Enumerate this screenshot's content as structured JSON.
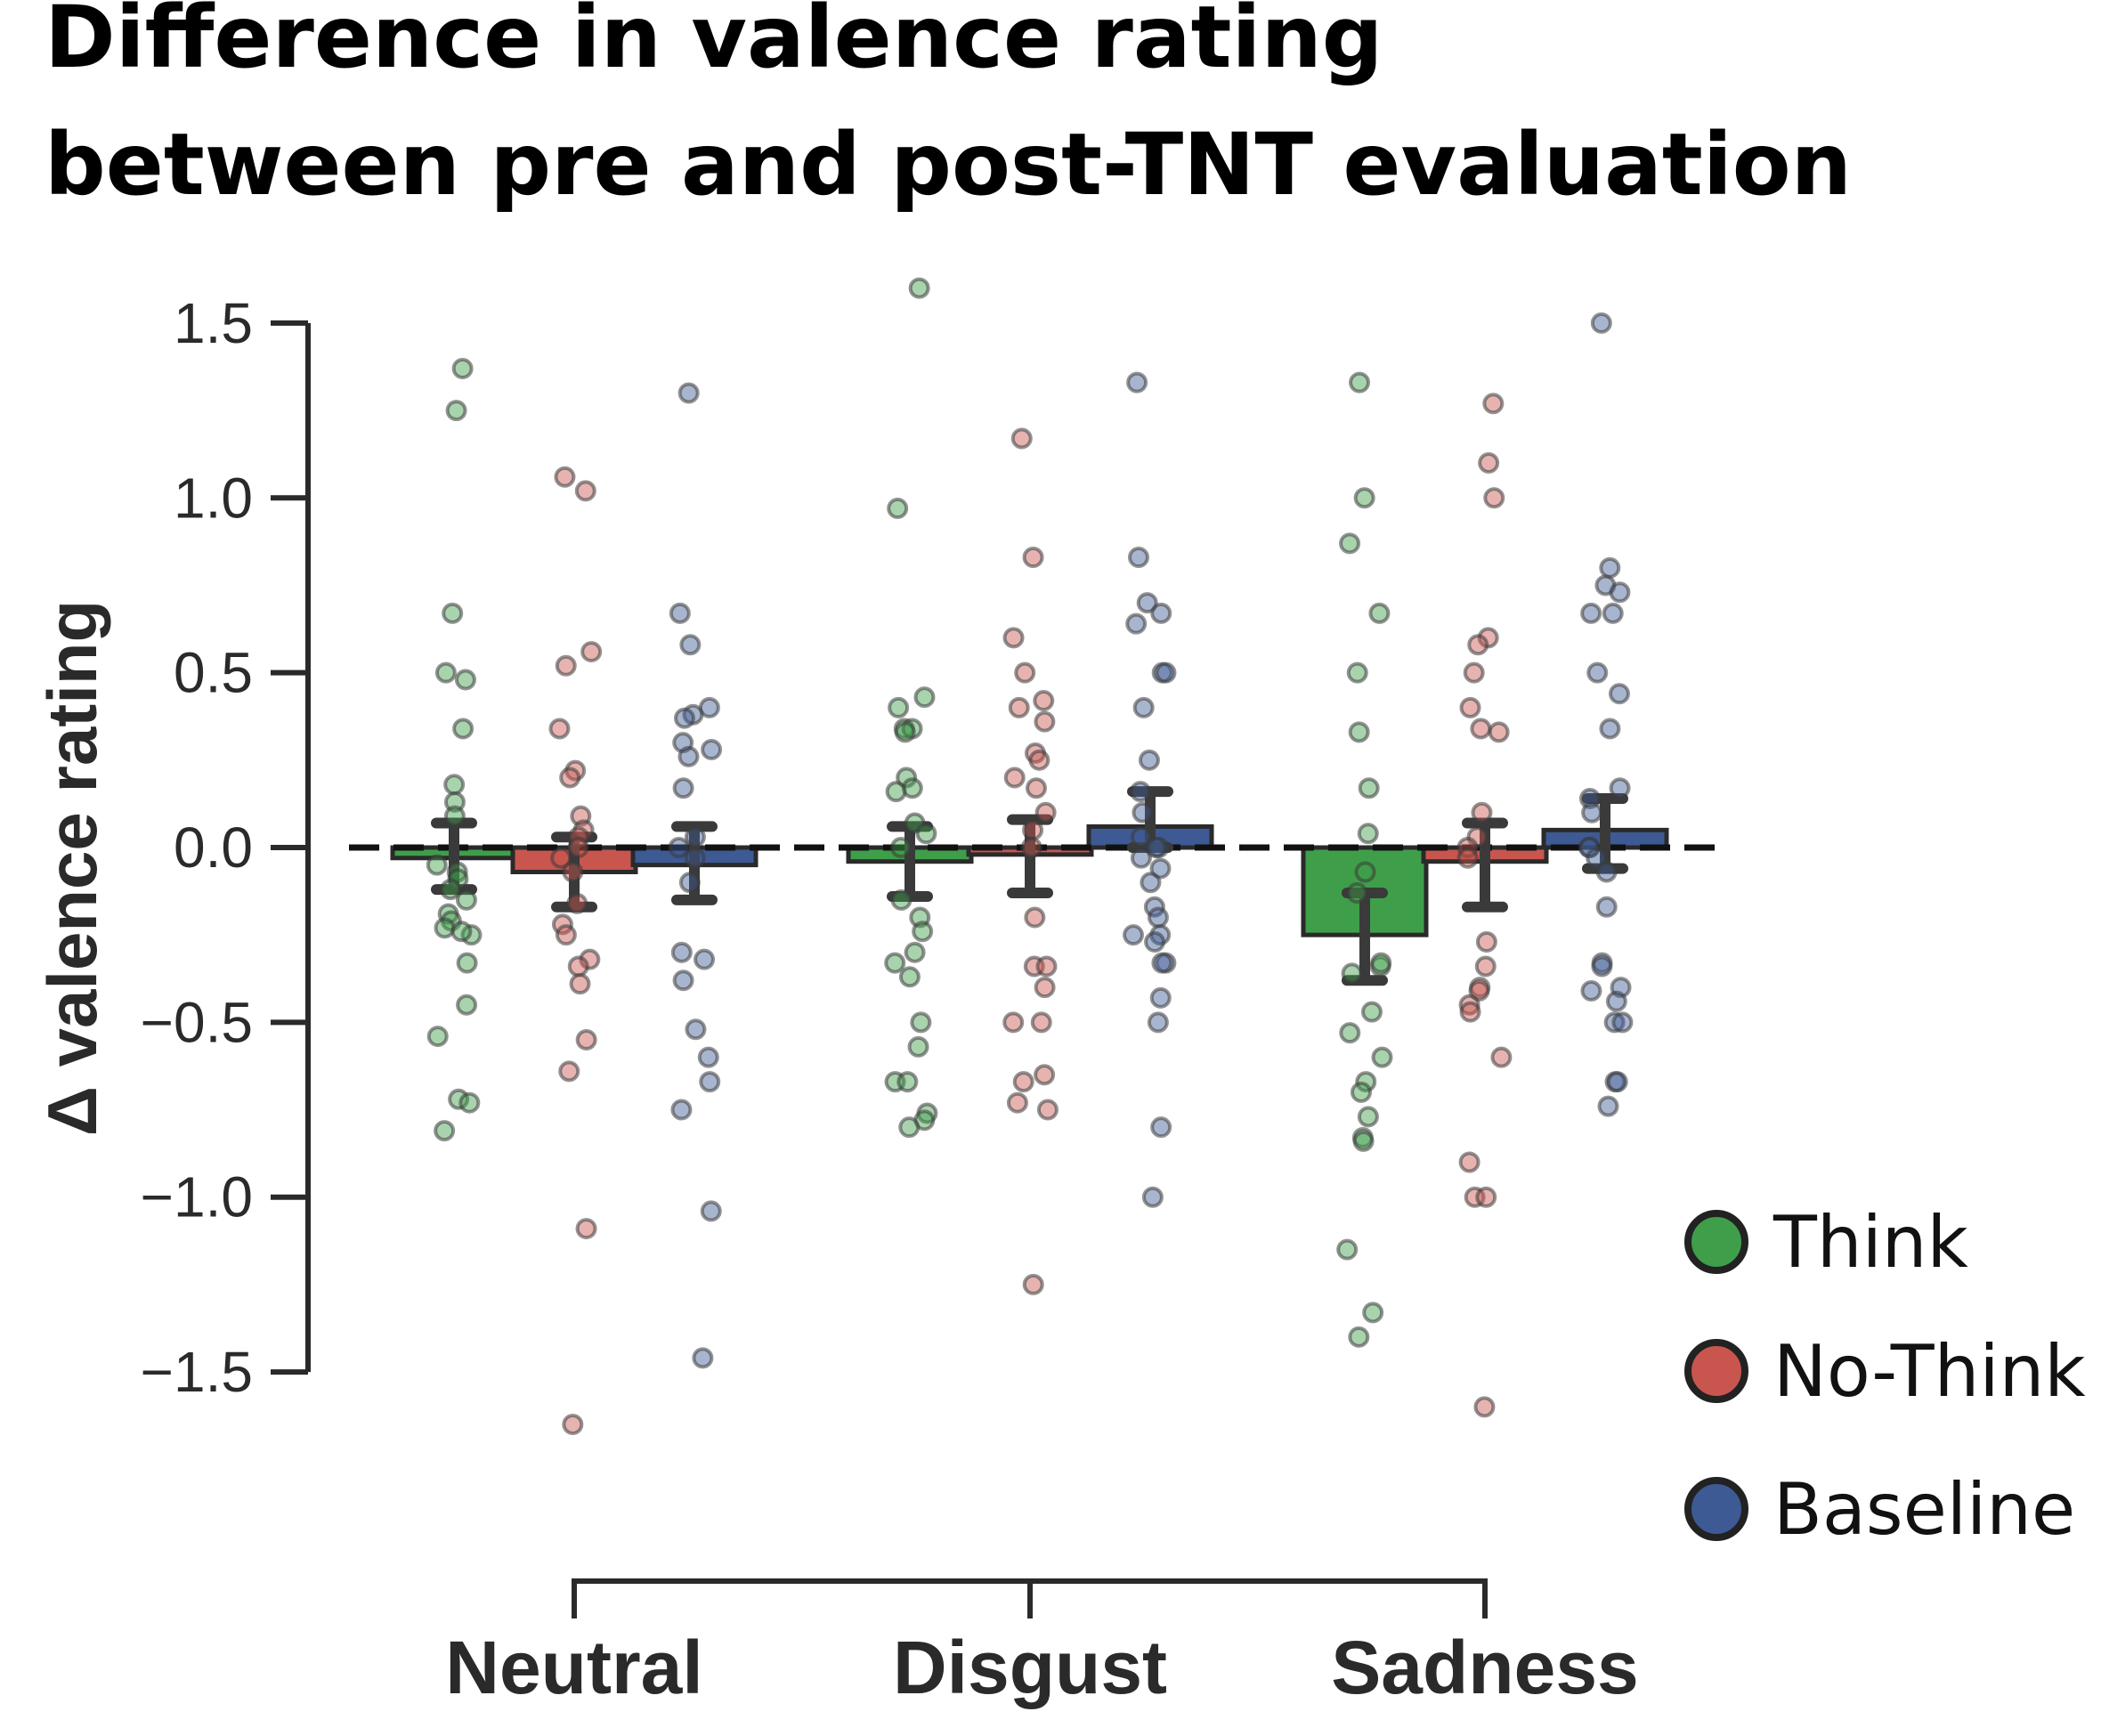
{
  "title_lines": [
    "Difference in valence rating",
    "between pre and post-TNT evaluation"
  ],
  "chart_data": {
    "type": "bar",
    "title": "Difference in valence rating between pre and post-TNT evaluation",
    "ylabel": "Δ valence rating",
    "xlabel": "",
    "categories": [
      "Neutral",
      "Disgust",
      "Sadness"
    ],
    "ylim": [
      -1.65,
      1.65
    ],
    "yticks": [
      -1.5,
      -1.0,
      -0.5,
      0.0,
      0.5,
      1.0,
      1.5
    ],
    "ytick_labels": [
      "−1.5",
      "−1.0",
      "−0.5",
      "0.0",
      "0.5",
      "1.0",
      "1.5"
    ],
    "reference_line": 0.0,
    "grid": false,
    "legend_position": "right",
    "series": [
      {
        "name": "Think",
        "color": "#3f9e4a",
        "values": [
          -0.03,
          -0.04,
          -0.25
        ],
        "ci": [
          [
            -0.12,
            0.07
          ],
          [
            -0.14,
            0.06
          ],
          [
            -0.38,
            -0.13
          ]
        ],
        "points": [
          [
            1.37,
            1.25,
            0.67,
            0.5,
            0.48,
            0.34,
            0.18,
            0.13,
            0.09,
            -0.05,
            -0.07,
            -0.09,
            -0.12,
            -0.15,
            -0.19,
            -0.21,
            -0.23,
            -0.25,
            -0.24,
            -0.33,
            -0.45,
            -0.54,
            -0.72,
            -0.73,
            -0.81
          ],
          [
            1.6,
            0.97,
            0.43,
            0.4,
            0.34,
            0.34,
            0.33,
            0.2,
            0.17,
            0.16,
            0.07,
            0.04,
            0.0,
            -0.15,
            -0.2,
            -0.24,
            -0.3,
            -0.33,
            -0.37,
            -0.5,
            -0.57,
            -0.67,
            -0.67,
            -0.76,
            -0.78,
            -0.8
          ],
          [
            1.33,
            1.0,
            0.87,
            0.67,
            0.5,
            0.33,
            0.17,
            0.04,
            -0.07,
            -0.13,
            -0.34,
            -0.33,
            -0.36,
            -0.47,
            -0.53,
            -0.6,
            -0.67,
            -0.7,
            -0.77,
            -0.83,
            -0.84,
            -1.15,
            -1.33,
            -1.4
          ]
        ]
      },
      {
        "name": "No-Think",
        "color": "#c8564f",
        "values": [
          -0.07,
          -0.02,
          -0.04
        ],
        "ci": [
          [
            -0.17,
            0.03
          ],
          [
            -0.13,
            0.08
          ],
          [
            -0.17,
            0.07
          ]
        ],
        "points": [
          [
            1.06,
            1.02,
            0.56,
            0.52,
            0.34,
            0.22,
            0.2,
            0.09,
            0.05,
            0.03,
            0.0,
            -0.03,
            -0.07,
            -0.16,
            -0.22,
            -0.25,
            -0.32,
            -0.34,
            -0.39,
            -0.55,
            -0.64,
            -1.09,
            -1.65
          ],
          [
            1.17,
            0.83,
            0.6,
            0.5,
            0.42,
            0.4,
            0.36,
            0.27,
            0.25,
            0.2,
            0.17,
            0.1,
            0.05,
            0.0,
            -0.2,
            -0.34,
            -0.34,
            -0.4,
            -0.5,
            -0.5,
            -0.65,
            -0.67,
            -0.73,
            -0.75,
            -1.25
          ],
          [
            1.27,
            1.1,
            1.0,
            0.6,
            0.58,
            0.5,
            0.4,
            0.34,
            0.33,
            0.1,
            0.03,
            0.0,
            -0.03,
            -0.27,
            -0.34,
            -0.4,
            -0.41,
            -0.45,
            -0.47,
            -0.6,
            -0.9,
            -1.0,
            -1.0,
            -1.6
          ]
        ]
      },
      {
        "name": "Baseline",
        "color": "#3d5a94",
        "values": [
          -0.05,
          0.06,
          0.05
        ],
        "ci": [
          [
            -0.15,
            0.06
          ],
          [
            0.0,
            0.16
          ],
          [
            -0.06,
            0.14
          ]
        ],
        "points": [
          [
            1.3,
            0.67,
            0.58,
            0.4,
            0.38,
            0.37,
            0.3,
            0.28,
            0.26,
            0.17,
            0.03,
            0.0,
            -0.03,
            -0.1,
            -0.3,
            -0.32,
            -0.38,
            -0.52,
            -0.6,
            -0.67,
            -0.75,
            -1.04,
            -1.46
          ],
          [
            1.33,
            0.83,
            0.7,
            0.67,
            0.64,
            0.5,
            0.5,
            0.4,
            0.25,
            0.16,
            0.1,
            0.03,
            0.0,
            0.0,
            -0.03,
            -0.06,
            -0.1,
            -0.17,
            -0.2,
            -0.25,
            -0.25,
            -0.27,
            -0.33,
            -0.33,
            -0.43,
            -0.5,
            -0.8,
            -1.0
          ],
          [
            1.5,
            0.8,
            0.75,
            0.73,
            0.67,
            0.67,
            0.5,
            0.44,
            0.34,
            0.17,
            0.14,
            0.1,
            0.0,
            0.0,
            -0.03,
            -0.07,
            -0.17,
            -0.33,
            -0.34,
            -0.4,
            -0.41,
            -0.44,
            -0.5,
            -0.5,
            -0.67,
            -0.67,
            -0.74
          ]
        ]
      }
    ]
  }
}
